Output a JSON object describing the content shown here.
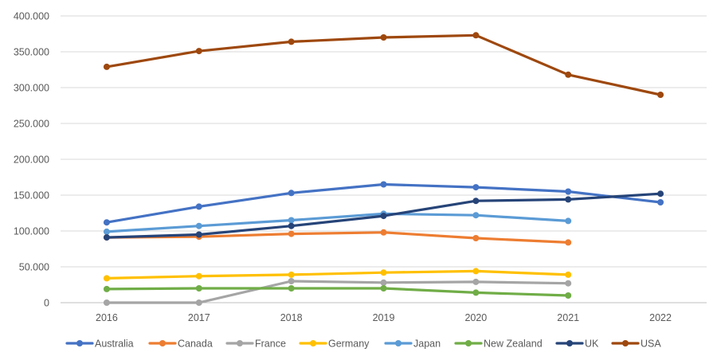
{
  "chart_data": {
    "type": "line",
    "title": "",
    "xlabel": "",
    "ylabel": "",
    "categories": [
      "2016",
      "2017",
      "2018",
      "2019",
      "2020",
      "2021",
      "2022"
    ],
    "ylim": [
      0,
      400000
    ],
    "y_ticks": [
      {
        "value": 0,
        "label": "0"
      },
      {
        "value": 50000,
        "label": "50.000"
      },
      {
        "value": 100000,
        "label": "100.000"
      },
      {
        "value": 150000,
        "label": "150.000"
      },
      {
        "value": 200000,
        "label": "200.000"
      },
      {
        "value": 250000,
        "label": "250.000"
      },
      {
        "value": 300000,
        "label": "300.000"
      },
      {
        "value": 350000,
        "label": "350.000"
      },
      {
        "value": 400000,
        "label": "400.000"
      }
    ],
    "grid": true,
    "legend_position": "bottom",
    "series": [
      {
        "name": "Australia",
        "color": "#4472c4",
        "values": [
          112000,
          134000,
          153000,
          165000,
          161000,
          155000,
          140000
        ]
      },
      {
        "name": "Canada",
        "color": "#ed7d31",
        "values": [
          91000,
          92000,
          96000,
          98000,
          90000,
          84000,
          null
        ]
      },
      {
        "name": "France",
        "color": "#a5a5a5",
        "values": [
          0,
          0,
          30000,
          28000,
          29000,
          27000,
          null
        ]
      },
      {
        "name": "Germany",
        "color": "#ffc000",
        "values": [
          34000,
          37000,
          39000,
          42000,
          44000,
          39000,
          null
        ]
      },
      {
        "name": "Japan",
        "color": "#5b9bd5",
        "values": [
          99000,
          107000,
          115000,
          124000,
          122000,
          114000,
          null
        ]
      },
      {
        "name": "New Zealand",
        "color": "#70ad47",
        "values": [
          19000,
          20000,
          20000,
          20000,
          14000,
          10000,
          null
        ]
      },
      {
        "name": "UK",
        "color": "#264478",
        "values": [
          91000,
          95000,
          107000,
          121000,
          142000,
          144000,
          152000
        ]
      },
      {
        "name": "USA",
        "color": "#9e480e",
        "values": [
          329000,
          351000,
          364000,
          370000,
          373000,
          318000,
          290000
        ]
      }
    ]
  }
}
